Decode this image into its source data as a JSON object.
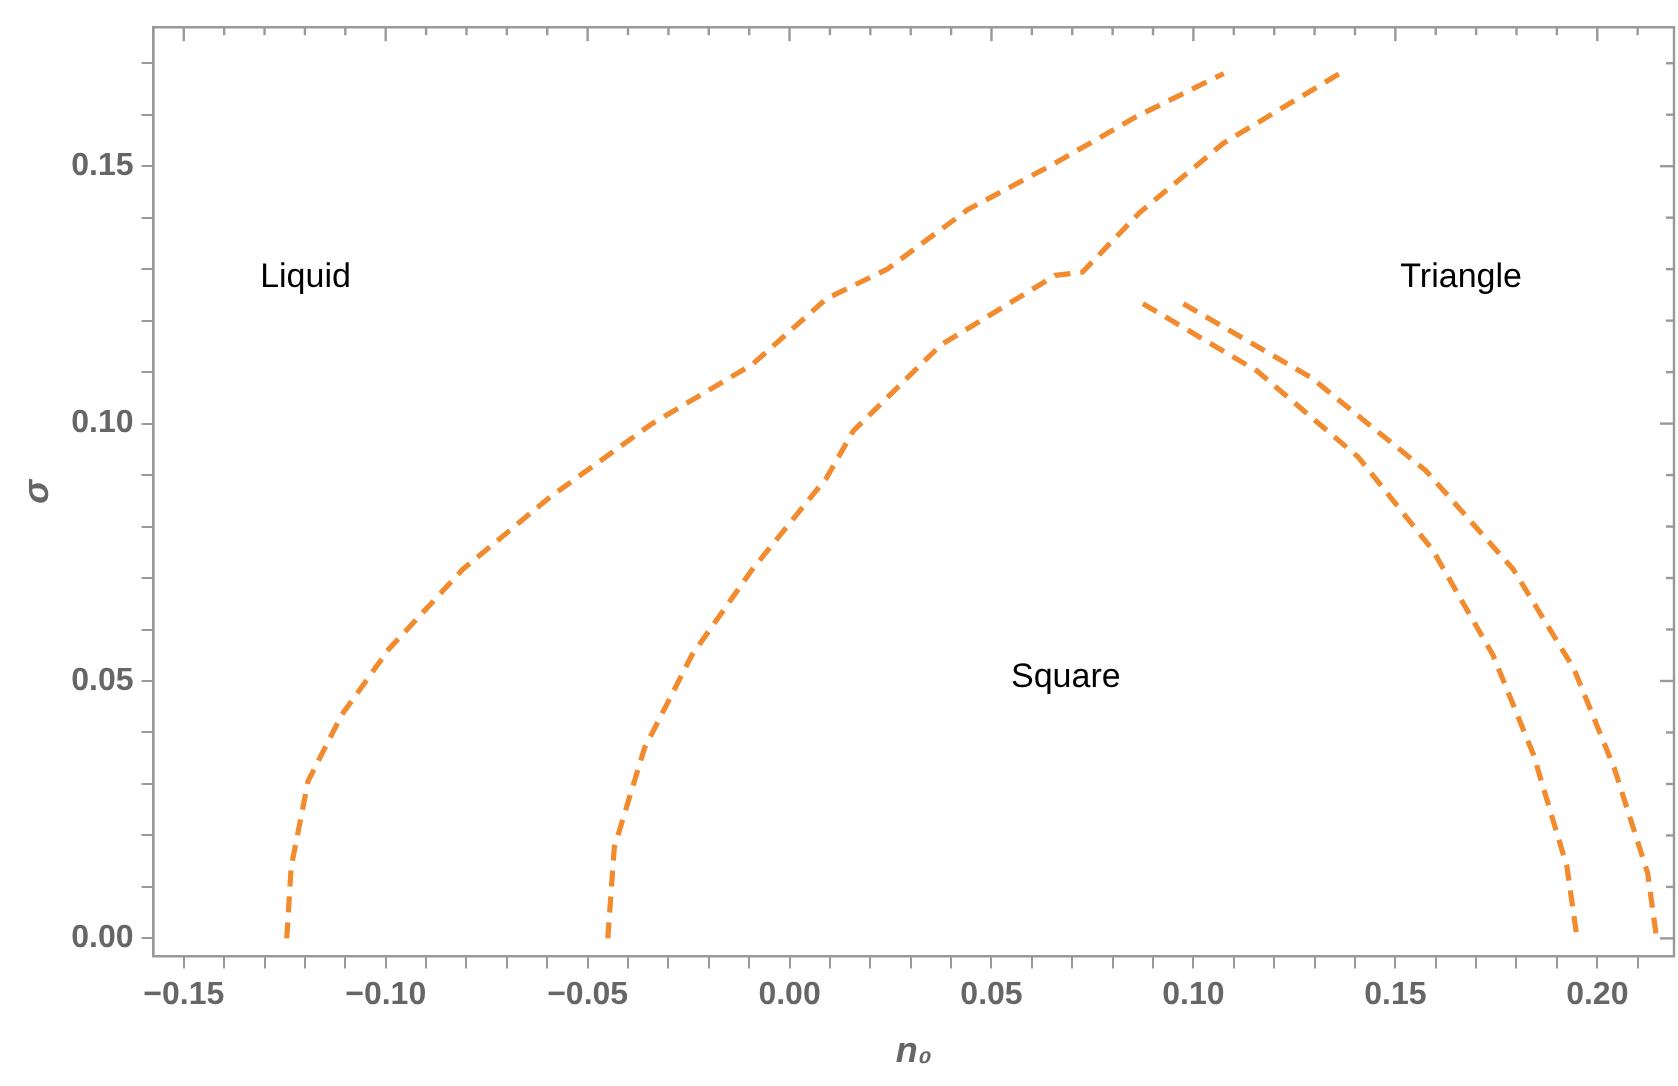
{
  "chart_data": {
    "type": "line",
    "xlabel": "n₀",
    "ylabel": "σ",
    "xlim": [
      -0.1575,
      0.219
    ],
    "ylim": [
      -0.0035,
      0.177
    ],
    "xticks": [
      {
        "value": -0.15,
        "label": "−0.15"
      },
      {
        "value": -0.14,
        "label": null
      },
      {
        "value": -0.13,
        "label": null
      },
      {
        "value": -0.12,
        "label": null
      },
      {
        "value": -0.11,
        "label": null
      },
      {
        "value": -0.1,
        "label": "−0.10"
      },
      {
        "value": -0.09,
        "label": null
      },
      {
        "value": -0.08,
        "label": null
      },
      {
        "value": -0.07,
        "label": null
      },
      {
        "value": -0.06,
        "label": null
      },
      {
        "value": -0.05,
        "label": "−0.05"
      },
      {
        "value": -0.04,
        "label": null
      },
      {
        "value": -0.03,
        "label": null
      },
      {
        "value": -0.02,
        "label": null
      },
      {
        "value": -0.01,
        "label": null
      },
      {
        "value": 0,
        "label": "0.00"
      },
      {
        "value": 0.01,
        "label": null
      },
      {
        "value": 0.02,
        "label": null
      },
      {
        "value": 0.03,
        "label": null
      },
      {
        "value": 0.04,
        "label": null
      },
      {
        "value": 0.05,
        "label": "0.05"
      },
      {
        "value": 0.06,
        "label": null
      },
      {
        "value": 0.07,
        "label": null
      },
      {
        "value": 0.08,
        "label": null
      },
      {
        "value": 0.09,
        "label": null
      },
      {
        "value": 0.1,
        "label": "0.10"
      },
      {
        "value": 0.11,
        "label": null
      },
      {
        "value": 0.12,
        "label": null
      },
      {
        "value": 0.13,
        "label": null
      },
      {
        "value": 0.14,
        "label": null
      },
      {
        "value": 0.15,
        "label": "0.15"
      },
      {
        "value": 0.16,
        "label": null
      },
      {
        "value": 0.17,
        "label": null
      },
      {
        "value": 0.18,
        "label": null
      },
      {
        "value": 0.19,
        "label": null
      },
      {
        "value": 0.2,
        "label": "0.20"
      },
      {
        "value": 0.21,
        "label": null
      }
    ],
    "yticks": [
      {
        "value": 0,
        "label": "0.00"
      },
      {
        "value": 0.01,
        "label": null
      },
      {
        "value": 0.02,
        "label": null
      },
      {
        "value": 0.03,
        "label": null
      },
      {
        "value": 0.04,
        "label": null
      },
      {
        "value": 0.05,
        "label": "0.05"
      },
      {
        "value": 0.06,
        "label": null
      },
      {
        "value": 0.07,
        "label": null
      },
      {
        "value": 0.08,
        "label": null
      },
      {
        "value": 0.09,
        "label": null
      },
      {
        "value": 0.1,
        "label": "0.10"
      },
      {
        "value": 0.11,
        "label": null
      },
      {
        "value": 0.12,
        "label": null
      },
      {
        "value": 0.13,
        "label": null
      },
      {
        "value": 0.14,
        "label": null
      },
      {
        "value": 0.15,
        "label": "0.15"
      },
      {
        "value": 0.16,
        "label": null
      },
      {
        "value": 0.17,
        "label": null
      }
    ],
    "grid": false,
    "legend": false,
    "marker": "none",
    "line_style": "dashed",
    "series": [
      {
        "color": "#f28a2e",
        "x": [
          -0.1245,
          -0.1234,
          -0.1192,
          -0.1109,
          -0.0992,
          -0.0809,
          -0.0592,
          -0.0342,
          -0.0092,
          0.0092,
          0.0242,
          0.0442,
          0.0658,
          0.0858,
          0.1075
        ],
        "values": [
          0,
          0.0139,
          0.0306,
          0.0434,
          0.0562,
          0.0717,
          0.0858,
          0.0999,
          0.1115,
          0.1243,
          0.13,
          0.1416,
          0.1506,
          0.1596,
          0.168
        ]
      },
      {
        "color": "#f28a2e",
        "x": [
          -0.045,
          -0.0434,
          -0.0359,
          -0.0242,
          -0.0092,
          0.0092,
          0.0158,
          0.0375,
          0.0658,
          0.0725,
          0.0867,
          0.1075,
          0.1375
        ],
        "values": [
          0,
          0.0177,
          0.037,
          0.055,
          0.0717,
          0.0895,
          0.0986,
          0.1153,
          0.1288,
          0.1294,
          0.141,
          0.1545,
          0.1686
        ]
      },
      {
        "color": "#f28a2e",
        "x": [
          0.0875,
          0.1158,
          0.1408,
          0.1592,
          0.1742,
          0.1842,
          0.1925,
          0.195
        ],
        "values": [
          0.1233,
          0.1102,
          0.0935,
          0.0755,
          0.055,
          0.0357,
          0.0139,
          0
        ]
      },
      {
        "color": "#f28a2e",
        "x": [
          0.0975,
          0.1292,
          0.1575,
          0.1792,
          0.1942,
          0.2042,
          0.2125,
          0.2147
        ],
        "values": [
          0.1233,
          0.1089,
          0.0909,
          0.0717,
          0.0524,
          0.0331,
          0.0126,
          0
        ]
      }
    ],
    "annotations": [
      "Liquid",
      "Triangle",
      "Square"
    ]
  }
}
